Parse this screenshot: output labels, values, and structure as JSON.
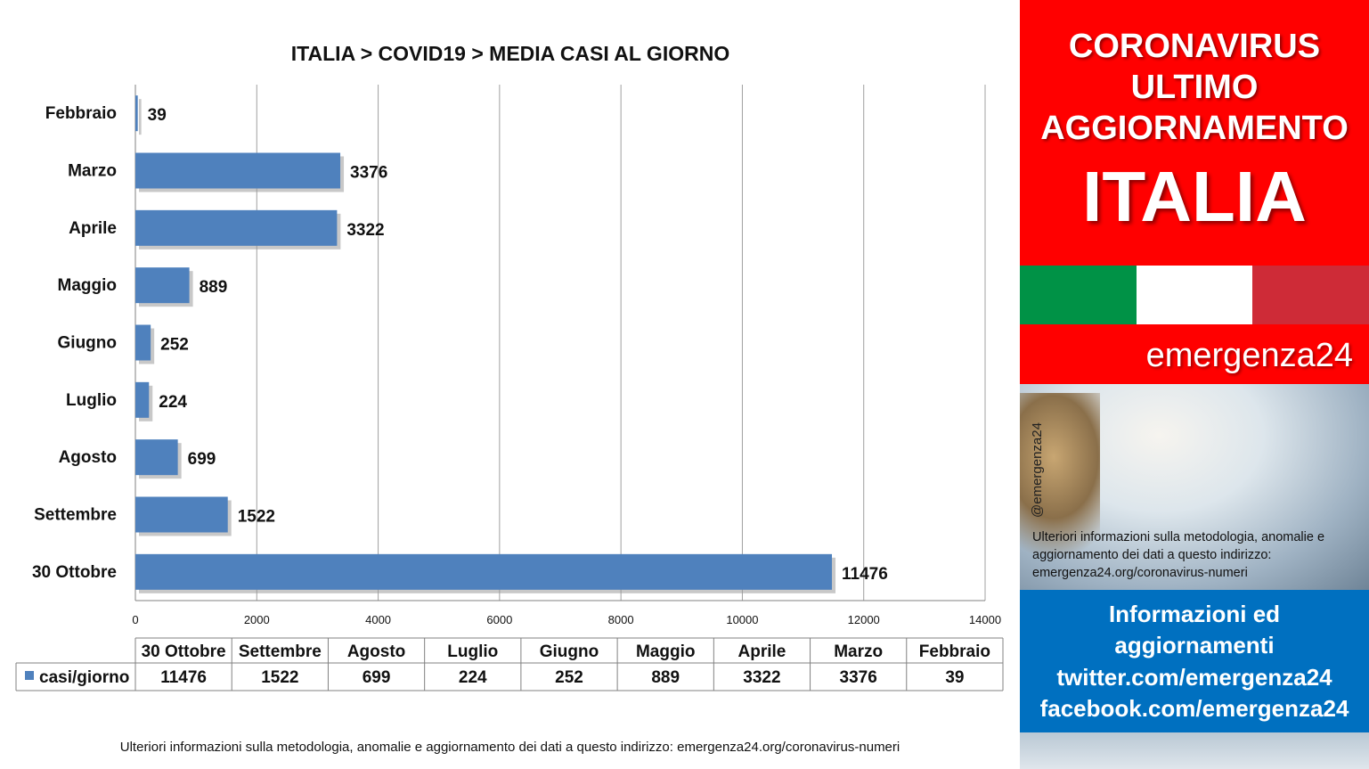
{
  "chart_data": {
    "type": "bar",
    "orientation": "horizontal",
    "title": "ITALIA >  COVID19 > MEDIA CASI AL GIORNO",
    "categories": [
      "Febbraio",
      "Marzo",
      "Aprile",
      "Maggio",
      "Giugno",
      "Luglio",
      "Agosto",
      "Settembre",
      "30 Ottobre"
    ],
    "series": [
      {
        "name": "casi/giorno",
        "values": [
          39,
          3376,
          3322,
          889,
          252,
          224,
          699,
          1522,
          11476
        ]
      }
    ],
    "xlim": [
      0,
      14000
    ],
    "xticks": [
      0,
      2000,
      4000,
      6000,
      8000,
      10000,
      12000,
      14000
    ],
    "grid": "vertical",
    "bar_color": "#4f81bd",
    "data_table": {
      "columns": [
        "30 Ottobre",
        "Settembre",
        "Agosto",
        "Luglio",
        "Giugno",
        "Maggio",
        "Aprile",
        "Marzo",
        "Febbraio"
      ],
      "row_label": "casi/giorno",
      "values": [
        11476,
        1522,
        699,
        224,
        252,
        889,
        3322,
        3376,
        39
      ]
    }
  },
  "footnote": "Ulteriori informazioni sulla metodologia, anomalie e aggiornamento dei dati a questo indirizzo: emergenza24.org/coronavirus-numeri",
  "panel": {
    "headline_lines": [
      "CORONAVIRUS",
      "ULTIMO",
      "AGGIORNAMENTO"
    ],
    "country": "ITALIA",
    "brand": "emergenza24",
    "handle": "@emergenza24",
    "note": "Ulteriori informazioni sulla metodologia, anomalie e aggiornamento dei dati a questo indirizzo: emergenza24.org/coronavirus-numeri",
    "info_lines": [
      "Informazioni ed",
      "aggiornamenti",
      "twitter.com/emergenza24",
      "facebook.com/emergenza24"
    ],
    "colors": {
      "red": "#ff0000",
      "blue": "#0070c0",
      "flag_green": "#009246",
      "flag_white": "#ffffff",
      "flag_red": "#ce2b37"
    }
  }
}
